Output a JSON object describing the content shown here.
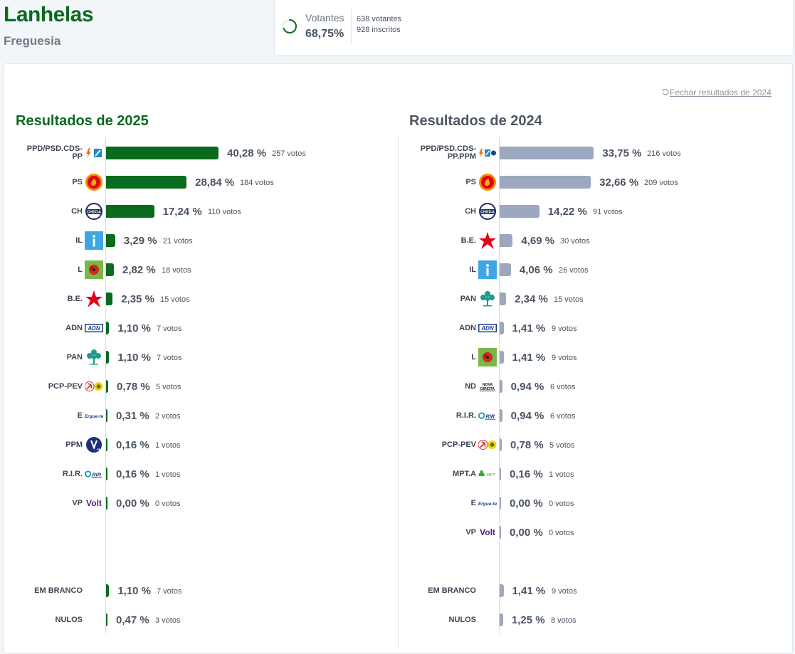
{
  "place": {
    "name": "Lanhelas",
    "type": "Freguesia"
  },
  "turnout": {
    "label": "Votantes",
    "percent": "68,75%",
    "voters": "638 votantes",
    "registered": "928 inscritos",
    "fraction": 0.6875
  },
  "close_link": "Fechar resultados de 2024",
  "colors": {
    "green": "#0a6a1e",
    "grey": "#9ba8bd"
  },
  "results_2025": {
    "title": "Resultados de 2025",
    "parties": [
      {
        "name": "PPD/PSD.CDS-PP",
        "icon": "psd-cds-logo",
        "percent": "40,28 %",
        "votes": "257 votos",
        "value": 40.28
      },
      {
        "name": "PS",
        "icon": "ps-logo",
        "percent": "28,84 %",
        "votes": "184 votos",
        "value": 28.84
      },
      {
        "name": "CH",
        "icon": "chega-logo",
        "percent": "17,24 %",
        "votes": "110 votos",
        "value": 17.24
      },
      {
        "name": "IL",
        "icon": "il-logo",
        "percent": "3,29 %",
        "votes": "21 votos",
        "value": 3.29
      },
      {
        "name": "L",
        "icon": "livre-logo",
        "percent": "2,82 %",
        "votes": "18 votos",
        "value": 2.82
      },
      {
        "name": "B.E.",
        "icon": "be-logo",
        "percent": "2,35 %",
        "votes": "15 votos",
        "value": 2.35
      },
      {
        "name": "ADN",
        "icon": "adn-logo",
        "percent": "1,10 %",
        "votes": "7 votos",
        "value": 1.1
      },
      {
        "name": "PAN",
        "icon": "pan-logo",
        "percent": "1,10 %",
        "votes": "7 votos",
        "value": 1.1
      },
      {
        "name": "PCP-PEV",
        "icon": "pcp-pev-logo",
        "percent": "0,78 %",
        "votes": "5 votos",
        "value": 0.78
      },
      {
        "name": "E",
        "icon": "ergue-te-logo",
        "percent": "0,31 %",
        "votes": "2 votos",
        "value": 0.31
      },
      {
        "name": "PPM",
        "icon": "ppm-logo",
        "percent": "0,16 %",
        "votes": "1 votos",
        "value": 0.16
      },
      {
        "name": "R.I.R.",
        "icon": "rir-logo",
        "percent": "0,16 %",
        "votes": "1 votos",
        "value": 0.16
      },
      {
        "name": "VP",
        "icon": "volt-logo",
        "percent": "0,00 %",
        "votes": "0 votos",
        "value": 0.0
      }
    ],
    "blank": {
      "name": "EM BRANCO",
      "percent": "1,10 %",
      "votes": "7 votos",
      "value": 1.1
    },
    "null": {
      "name": "NULOS",
      "percent": "0,47 %",
      "votes": "3 votos",
      "value": 0.47
    }
  },
  "results_2024": {
    "title": "Resultados de 2024",
    "parties": [
      {
        "name": "PPD/PSD.CDS-PP.PPM",
        "icon": "psd-cds-ppm-logo",
        "percent": "33,75 %",
        "votes": "216 votos",
        "value": 33.75
      },
      {
        "name": "PS",
        "icon": "ps-logo",
        "percent": "32,66 %",
        "votes": "209 votos",
        "value": 32.66
      },
      {
        "name": "CH",
        "icon": "chega-logo",
        "percent": "14,22 %",
        "votes": "91 votos",
        "value": 14.22
      },
      {
        "name": "B.E.",
        "icon": "be-logo",
        "percent": "4,69 %",
        "votes": "30 votos",
        "value": 4.69
      },
      {
        "name": "IL",
        "icon": "il-logo",
        "percent": "4,06 %",
        "votes": "26 votos",
        "value": 4.06
      },
      {
        "name": "PAN",
        "icon": "pan-logo",
        "percent": "2,34 %",
        "votes": "15 votos",
        "value": 2.34
      },
      {
        "name": "ADN",
        "icon": "adn-logo",
        "percent": "1,41 %",
        "votes": "9 votos",
        "value": 1.41
      },
      {
        "name": "L",
        "icon": "livre-logo",
        "percent": "1,41 %",
        "votes": "9 votos",
        "value": 1.41
      },
      {
        "name": "ND",
        "icon": "nova-direita-logo",
        "percent": "0,94 %",
        "votes": "6 votos",
        "value": 0.94
      },
      {
        "name": "R.I.R.",
        "icon": "rir-logo",
        "percent": "0,94 %",
        "votes": "6 votos",
        "value": 0.94
      },
      {
        "name": "PCP-PEV",
        "icon": "pcp-pev-logo",
        "percent": "0,78 %",
        "votes": "5 votos",
        "value": 0.78
      },
      {
        "name": "MPT.A",
        "icon": "mpt-logo",
        "percent": "0,16 %",
        "votes": "1 votos",
        "value": 0.16
      },
      {
        "name": "E",
        "icon": "ergue-te-logo",
        "percent": "0,00 %",
        "votes": "0 votos",
        "value": 0.0
      },
      {
        "name": "VP",
        "icon": "volt-logo",
        "percent": "0,00 %",
        "votes": "0 votos",
        "value": 0.0
      }
    ],
    "blank": {
      "name": "EM BRANCO",
      "percent": "1,41 %",
      "votes": "9 votos",
      "value": 1.41
    },
    "null": {
      "name": "NULOS",
      "percent": "1,25 %",
      "votes": "8 votos",
      "value": 1.25
    }
  },
  "logo_text": {
    "chega": "CHEGA",
    "adn": "ADN",
    "ergue": "Ergue-te",
    "rir": "RIR",
    "volt": "Volt",
    "nova_direita": "NOVA DIREITA",
    "ppm": "PPM",
    "mpt": "MPT"
  }
}
